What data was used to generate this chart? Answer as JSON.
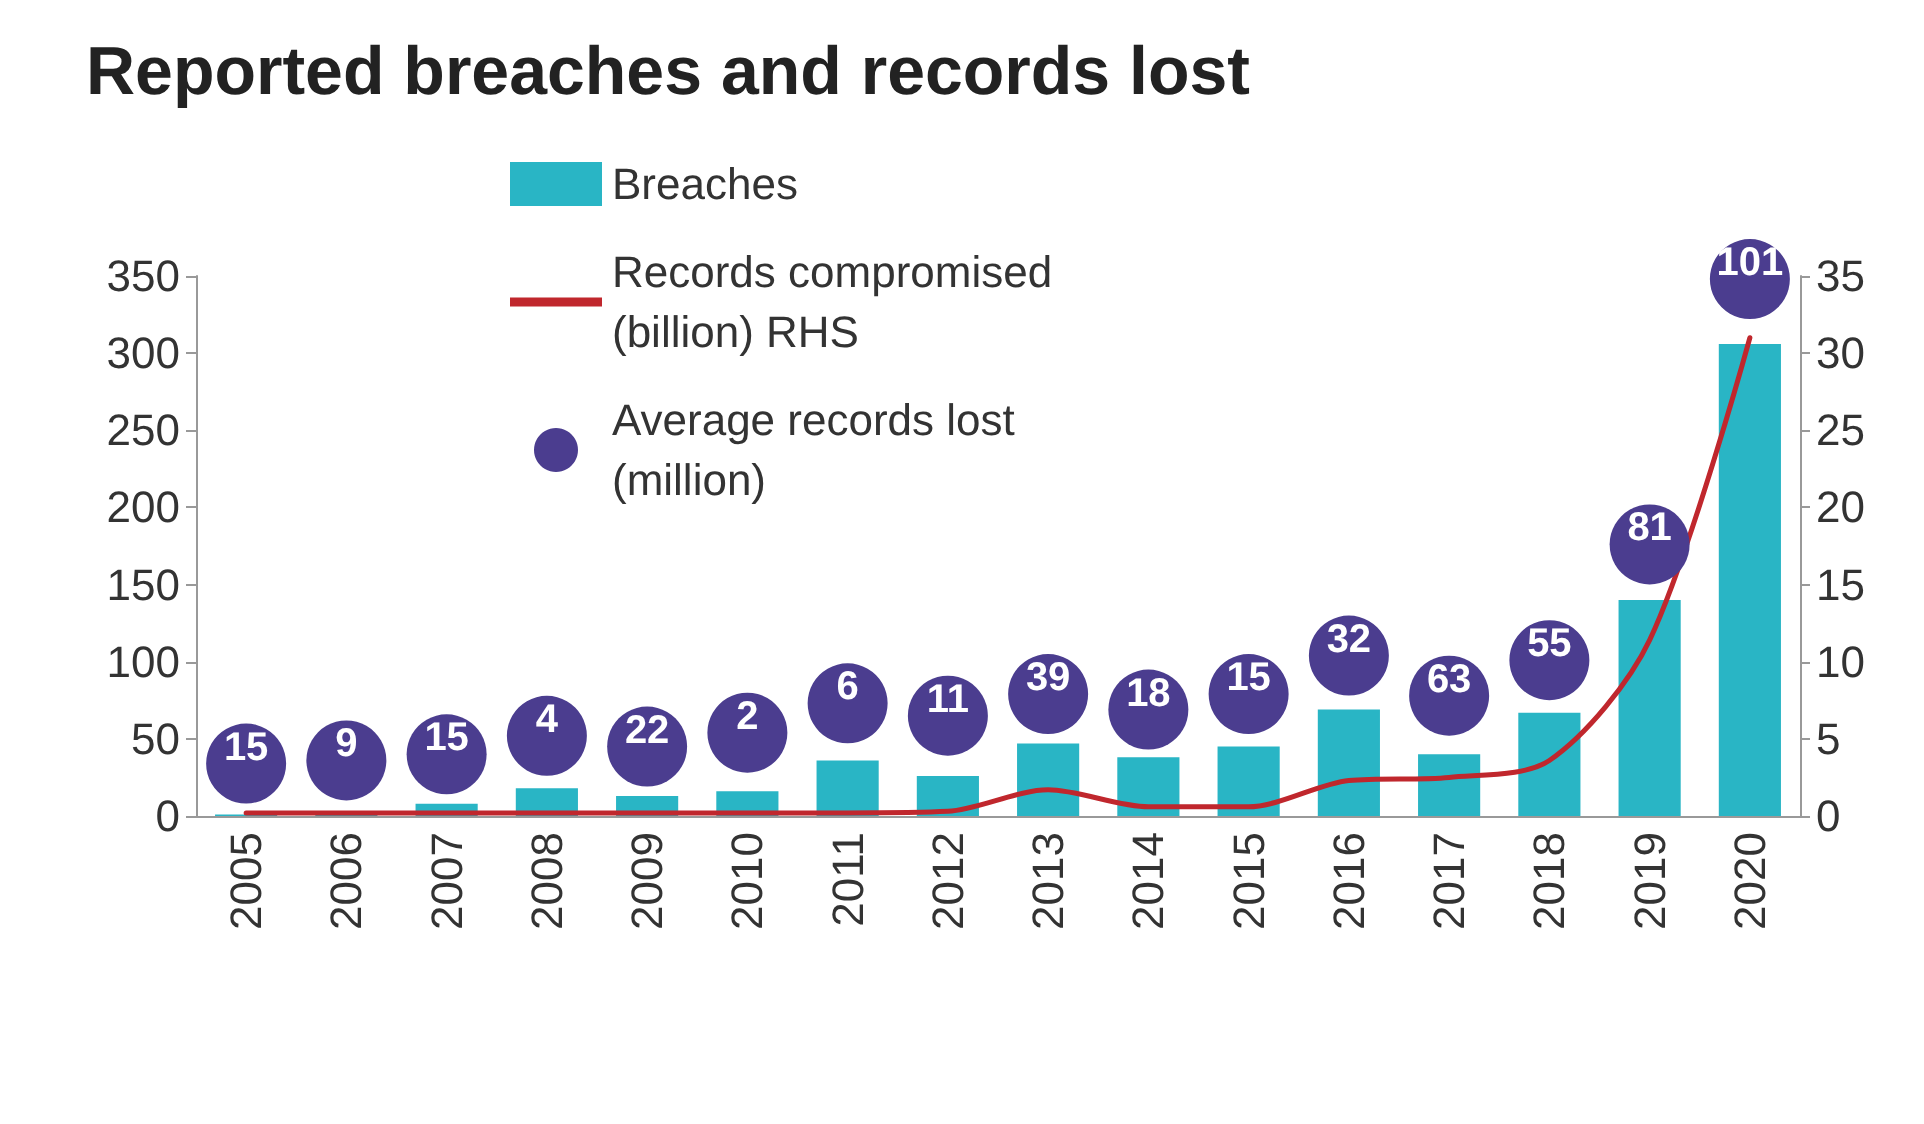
{
  "chart_data": {
    "type": "bar",
    "title": "Reported breaches and records lost",
    "categories": [
      "2005",
      "2006",
      "2007",
      "2008",
      "2009",
      "2010",
      "2011",
      "2012",
      "2013",
      "2014",
      "2015",
      "2016",
      "2017",
      "2018",
      "2019",
      "2020"
    ],
    "series": [
      {
        "name": "Breaches",
        "color": "#29b5c5",
        "values": [
          1,
          1,
          8,
          18,
          13,
          16,
          36,
          26,
          47,
          38,
          45,
          69,
          40,
          67,
          140,
          306
        ]
      },
      {
        "name": "Records compromised (billion) RHS",
        "type": "line",
        "axis": "y2",
        "color": "#c0272d",
        "values": [
          0.2,
          0.2,
          0.2,
          0.2,
          0.2,
          0.2,
          0.2,
          0.3,
          1.7,
          0.6,
          0.6,
          2.3,
          2.5,
          3.6,
          11.4,
          31
        ]
      },
      {
        "name": "Average records lost (million)",
        "type": "scatter",
        "marker": "circle",
        "color": "#4b3d8f",
        "values": [
          34,
          36,
          40,
          52,
          45,
          54,
          73,
          65,
          79,
          69,
          79,
          104,
          78,
          101,
          176,
          348
        ]
      }
    ],
    "ylim": [
      0,
      350
    ],
    "yticks": [
      0,
      50,
      100,
      150,
      200,
      250,
      300,
      350
    ],
    "y2lim": [
      0,
      35
    ],
    "y2ticks": [
      0,
      5,
      10,
      15,
      20,
      25,
      30,
      35
    ],
    "annotations": [
      {
        "text": "15",
        "x": "2005",
        "y": 34
      },
      {
        "text": "9",
        "x": "2006",
        "y": 36
      },
      {
        "text": "15",
        "x": "2007",
        "y": 40
      },
      {
        "text": "4",
        "x": "2008",
        "y": 52
      },
      {
        "text": "22",
        "x": "2009",
        "y": 45
      },
      {
        "text": "2",
        "x": "2010",
        "y": 54
      },
      {
        "text": "6",
        "x": "2011",
        "y": 73
      },
      {
        "text": "11",
        "x": "2012",
        "y": 65
      },
      {
        "text": "39",
        "x": "2013",
        "y": 79
      },
      {
        "text": "18",
        "x": "2014",
        "y": 69
      },
      {
        "text": "15",
        "x": "2015",
        "y": 79
      },
      {
        "text": "32",
        "x": "2016",
        "y": 104
      },
      {
        "text": "63",
        "x": "2017",
        "y": 78
      },
      {
        "text": "55",
        "x": "2018",
        "y": 101
      },
      {
        "text": "81",
        "x": "2019",
        "y": 176
      },
      {
        "text": "101",
        "x": "2020",
        "y": 348
      }
    ],
    "grid": false,
    "legend": "top left",
    "line_style": "solid"
  }
}
